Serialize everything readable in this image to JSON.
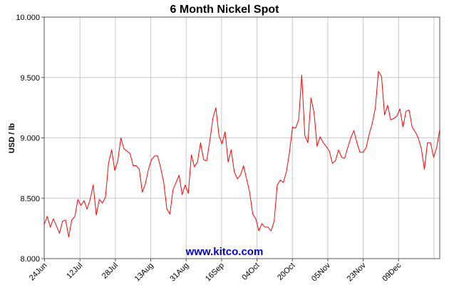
{
  "chart_data": {
    "type": "line",
    "title": "6 Month Nickel Spot",
    "ylabel": "USD / lb",
    "xlabel": "",
    "ylim": [
      8.0,
      10.0
    ],
    "yticks": [
      "8.000",
      "8.500",
      "9.000",
      "9.500",
      "10.000"
    ],
    "xticks": [
      "24Jun",
      "12Jul",
      "28Jul",
      "13Aug",
      "31Aug",
      "16Sep",
      "04Oct",
      "20Oct",
      "05Nov",
      "23Nov",
      "09Dec"
    ],
    "grid": true,
    "watermark": "www.kitco.com",
    "colors": {
      "line": "#ff0000",
      "grid": "#c8c8c8",
      "watermark": "#0000cc"
    },
    "series": [
      {
        "values": [
          8.28,
          8.35,
          8.26,
          8.33,
          8.27,
          8.21,
          8.31,
          8.32,
          8.18,
          8.32,
          8.35,
          8.49,
          8.44,
          8.48,
          8.41,
          8.49,
          8.61,
          8.36,
          8.49,
          8.46,
          8.51,
          8.79,
          8.9,
          8.73,
          8.81,
          9.0,
          8.91,
          8.89,
          8.87,
          8.77,
          8.77,
          8.74,
          8.55,
          8.62,
          8.74,
          8.82,
          8.85,
          8.85,
          8.75,
          8.63,
          8.41,
          8.37,
          8.57,
          8.63,
          8.69,
          8.53,
          8.61,
          8.54,
          8.86,
          8.76,
          8.8,
          8.96,
          8.82,
          8.81,
          8.97,
          9.16,
          9.25,
          9.02,
          8.95,
          9.05,
          8.8,
          8.9,
          8.72,
          8.66,
          8.69,
          8.77,
          8.66,
          8.55,
          8.37,
          8.33,
          8.23,
          8.29,
          8.26,
          8.26,
          8.23,
          8.31,
          8.61,
          8.65,
          8.63,
          8.72,
          8.88,
          9.09,
          9.08,
          9.15,
          9.52,
          9.02,
          8.96,
          9.33,
          9.21,
          8.93,
          9.01,
          8.96,
          8.93,
          8.89,
          8.79,
          8.81,
          8.9,
          8.84,
          8.83,
          8.92,
          9.0,
          9.06,
          8.96,
          8.88,
          8.88,
          8.92,
          9.03,
          9.12,
          9.25,
          9.55,
          9.51,
          9.19,
          9.27,
          9.15,
          9.16,
          9.18,
          9.24,
          9.09,
          9.22,
          9.23,
          9.09,
          9.05,
          9.0,
          8.91,
          8.74,
          8.96,
          8.96,
          8.84,
          8.92,
          9.07
        ]
      }
    ]
  }
}
